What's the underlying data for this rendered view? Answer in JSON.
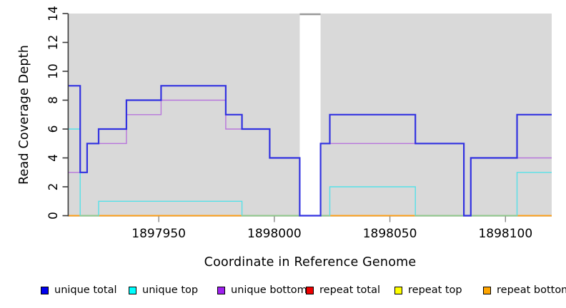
{
  "chart_data": {
    "type": "line",
    "subtype": "step-coverage-plot",
    "title": "",
    "xlabel": "Coordinate in Reference Genome",
    "ylabel": "Read Coverage Depth",
    "xlim": [
      1897911,
      1898120
    ],
    "ylim": [
      0,
      14
    ],
    "x_ticks": [
      1897950,
      1898000,
      1898050,
      1898100
    ],
    "y_ticks": [
      0,
      2,
      4,
      6,
      8,
      10,
      12,
      14
    ],
    "grid": false,
    "legend_position": "bottom",
    "plot_background": "#d9d9d9",
    "no_data_region": {
      "from": 1898011,
      "to": 1898020,
      "fill": "#ffffff",
      "top_edge_color": "#999999"
    },
    "style": {
      "y_axis_color": "#3a3a3a",
      "x_tick_color": "#888888",
      "tick_label_color": "#000000",
      "tick_label_size": 17
    },
    "series": [
      {
        "name": "repeat total",
        "color": "#dd0000",
        "line_width": 1.2,
        "steps": [
          [
            1897911,
            0
          ],
          [
            1898120,
            0
          ]
        ]
      },
      {
        "name": "repeat top",
        "color": "#f2f200",
        "line_width": 1.2,
        "steps": [
          [
            1897911,
            0
          ],
          [
            1898120,
            0
          ]
        ]
      },
      {
        "name": "repeat bottom",
        "color": "#ff9e13",
        "line_width": 1.7,
        "steps": [
          [
            1897911,
            0
          ],
          [
            1898120,
            0
          ]
        ]
      },
      {
        "name": "unique top",
        "color": "#55e1e8",
        "line_width": 1.4,
        "steps": [
          [
            1897911,
            6
          ],
          [
            1897916,
            0
          ],
          [
            1897924,
            1
          ],
          [
            1897986,
            0
          ],
          [
            1898024,
            2
          ],
          [
            1898061,
            0
          ],
          [
            1898105,
            3
          ],
          [
            1898120,
            3
          ]
        ]
      },
      {
        "name": "unique bottom",
        "color": "#b775db",
        "line_width": 1.4,
        "steps": [
          [
            1897911,
            3
          ],
          [
            1897919,
            5
          ],
          [
            1897936,
            7
          ],
          [
            1897951,
            8
          ],
          [
            1897979,
            6
          ],
          [
            1897998,
            4
          ],
          [
            1898011,
            0
          ],
          [
            1898020,
            5
          ],
          [
            1898082,
            0
          ],
          [
            1898085,
            4
          ],
          [
            1898120,
            4
          ]
        ]
      },
      {
        "name": "unique total",
        "color": "#3232e0",
        "line_width": 2.2,
        "steps": [
          [
            1897911,
            9
          ],
          [
            1897916,
            3
          ],
          [
            1897919,
            5
          ],
          [
            1897924,
            6
          ],
          [
            1897936,
            8
          ],
          [
            1897951,
            9
          ],
          [
            1897979,
            7
          ],
          [
            1897986,
            6
          ],
          [
            1897998,
            4
          ],
          [
            1898011,
            0
          ],
          [
            1898020,
            5
          ],
          [
            1898024,
            7
          ],
          [
            1898061,
            5
          ],
          [
            1898082,
            0
          ],
          [
            1898085,
            4
          ],
          [
            1898105,
            7
          ],
          [
            1898120,
            7
          ]
        ]
      }
    ],
    "baseline_overlap_segments": [
      [
        1897916,
        1897924
      ],
      [
        1897986,
        1898024
      ],
      [
        1898061,
        1898105
      ]
    ],
    "baseline_overlap_color": "#8cc98c"
  },
  "legend": {
    "items": [
      {
        "label": "unique total",
        "color": "#0000ee"
      },
      {
        "label": "unique top",
        "color": "#00ffff"
      },
      {
        "label": "unique bottom",
        "color": "#a020f0"
      },
      {
        "label": "repeat total",
        "color": "#ee0000"
      },
      {
        "label": "repeat top",
        "color": "#ffff00"
      },
      {
        "label": "repeat bottom",
        "color": "#ffa500"
      }
    ]
  }
}
